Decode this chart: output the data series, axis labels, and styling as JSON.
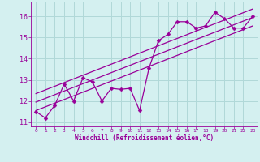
{
  "xlabel": "Windchill (Refroidissement éolien,°C)",
  "background_color": "#d4f0f0",
  "grid_color": "#b0d8d8",
  "line_color": "#990099",
  "xlim": [
    -0.5,
    23.5
  ],
  "ylim": [
    10.8,
    16.7
  ],
  "yticks": [
    11,
    12,
    13,
    14,
    15,
    16
  ],
  "xticks": [
    0,
    1,
    2,
    3,
    4,
    5,
    6,
    7,
    8,
    9,
    10,
    11,
    12,
    13,
    14,
    15,
    16,
    17,
    18,
    19,
    20,
    21,
    22,
    23
  ],
  "scatter_x": [
    0,
    1,
    2,
    3,
    4,
    5,
    6,
    7,
    8,
    9,
    10,
    11,
    12,
    13,
    14,
    15,
    16,
    17,
    18,
    19,
    20,
    21,
    22,
    23
  ],
  "scatter_y": [
    11.5,
    11.2,
    11.8,
    12.8,
    12.0,
    13.1,
    12.9,
    12.0,
    12.6,
    12.55,
    12.6,
    11.55,
    13.55,
    14.85,
    15.15,
    15.75,
    15.75,
    15.45,
    15.55,
    16.2,
    15.9,
    15.45,
    15.45,
    16.0
  ],
  "reg_lines": [
    {
      "x0": 0,
      "y0": 11.55,
      "x1": 23,
      "y1": 15.55
    },
    {
      "x0": 0,
      "y0": 11.95,
      "x1": 23,
      "y1": 15.95
    },
    {
      "x0": 0,
      "y0": 12.35,
      "x1": 23,
      "y1": 16.35
    }
  ],
  "xlabel_fontsize": 5.5,
  "ylabel_fontsize": 6.0,
  "xtick_fontsize": 4.5,
  "ytick_fontsize": 6.0,
  "marker_size": 2.5,
  "line_width": 0.9
}
